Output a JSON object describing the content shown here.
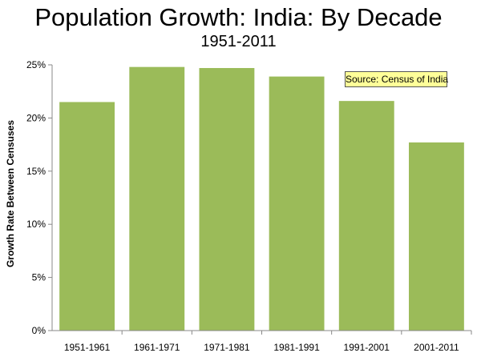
{
  "chart_data": {
    "type": "bar",
    "title": "Population Growth: India: By Decade",
    "subtitle": "1951-2011",
    "xlabel": "",
    "ylabel": "Growth Rate Between Censuses",
    "categories": [
      "1951-1961",
      "1961-1971",
      "1971-1981",
      "1981-1991",
      "1991-2001",
      "2001-2011"
    ],
    "values": [
      0.215,
      0.248,
      0.247,
      0.239,
      0.216,
      0.177
    ],
    "ylim": [
      0,
      0.25
    ],
    "yticks": [
      0,
      0.05,
      0.1,
      0.15,
      0.2,
      0.25
    ],
    "ytick_labels": [
      "0%",
      "5%",
      "10%",
      "15%",
      "20%",
      "25%"
    ],
    "bar_color": "#9bbb59",
    "grid": false,
    "annotation": "Source: Census of India"
  }
}
